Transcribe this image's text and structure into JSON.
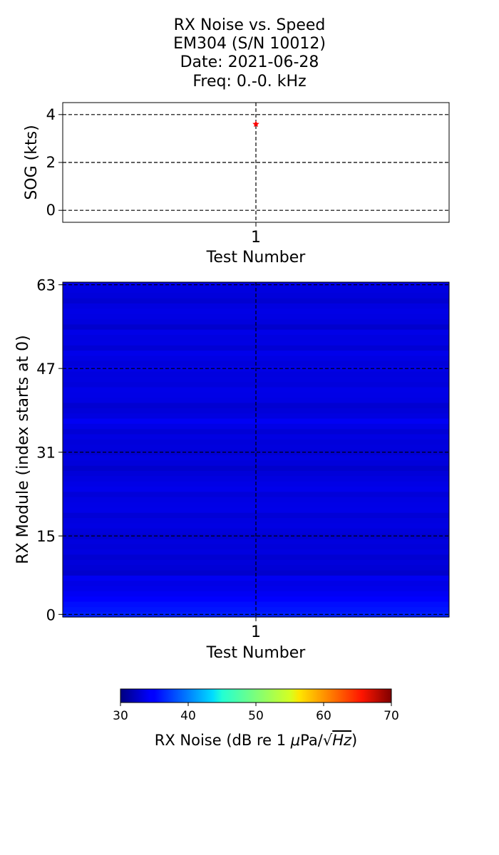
{
  "title_lines": [
    "RX Noise vs. Speed",
    "EM304 (S/N 10012)",
    "Date: 2021-06-28",
    "Freq: 0.-0. kHz"
  ],
  "chart_data": [
    {
      "type": "scatter",
      "xlabel": "Test Number",
      "ylabel": "SOG (kts)",
      "x_ticks": [
        "1"
      ],
      "y_ticks": [
        0,
        2,
        4
      ],
      "ylim": [
        -0.5,
        4.5
      ],
      "grid": true,
      "marker": "star",
      "marker_color": "#ff0000",
      "points": [
        {
          "x": 1,
          "y": 3.6
        }
      ]
    },
    {
      "type": "heatmap",
      "xlabel": "Test Number",
      "ylabel": "RX Module (index starts at 0)",
      "x_ticks": [
        "1"
      ],
      "y_ticks": [
        0,
        15,
        31,
        47,
        63
      ],
      "grid": true,
      "colormap": "jet",
      "vmin": 30,
      "vmax": 70,
      "rows": 64,
      "values": [
        36.2,
        35.8,
        35.5,
        35.0,
        34.6,
        34.2,
        34.0,
        34.5,
        33.0,
        33.4,
        33.6,
        33.2,
        33.8,
        33.5,
        33.7,
        33.2,
        33.6,
        33.9,
        33.8,
        33.4,
        34.1,
        34.0,
        33.9,
        33.5,
        34.2,
        34.0,
        33.8,
        33.5,
        33.0,
        33.6,
        33.8,
        33.3,
        33.7,
        33.6,
        33.9,
        33.4,
        34.0,
        34.6,
        33.8,
        33.5,
        33.2,
        33.9,
        34.0,
        34.1,
        33.6,
        33.8,
        33.7,
        34.0,
        33.6,
        33.9,
        34.2,
        33.3,
        33.9,
        33.8,
        34.1,
        33.0,
        33.7,
        33.9,
        34.0,
        33.8,
        33.2,
        33.6,
        33.8,
        33.9
      ]
    }
  ],
  "colorbar": {
    "min": 30,
    "max": 70,
    "ticks": [
      "30",
      "40",
      "50",
      "60",
      "70"
    ],
    "label_prefix": "RX Noise (dB re 1 ",
    "label_mu": "μ",
    "label_unit": "Pa/",
    "label_hz": "Hz",
    "label_suffix": ")"
  }
}
